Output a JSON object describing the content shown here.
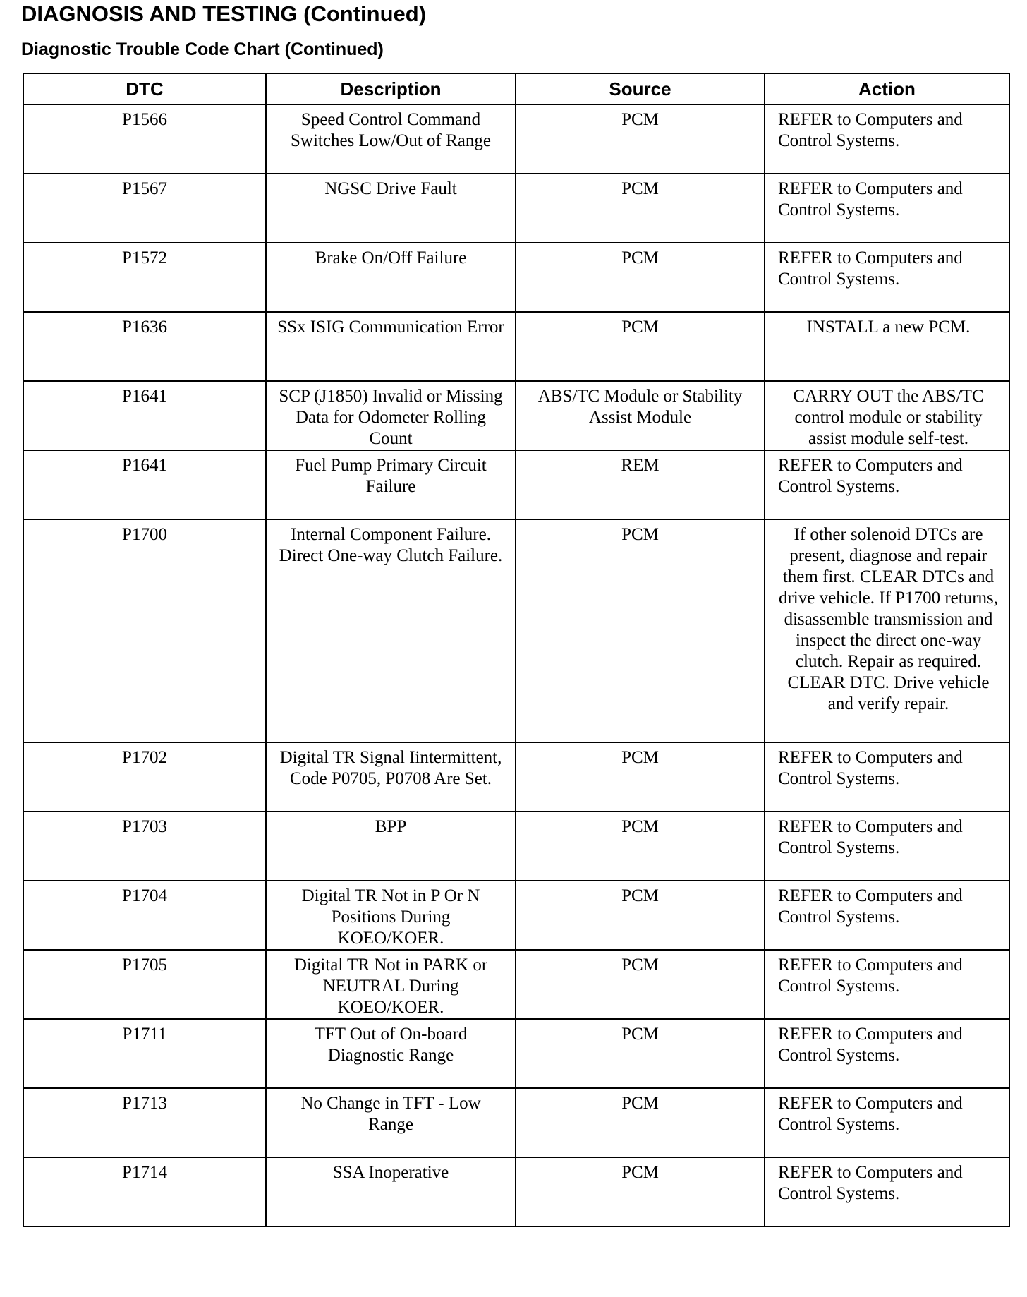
{
  "header": {
    "title": "DIAGNOSIS AND TESTING (Continued)",
    "subtitle": "Diagnostic Trouble Code Chart (Continued)"
  },
  "table": {
    "columns": [
      "DTC",
      "Description",
      "Source",
      "Action"
    ],
    "rows": [
      [
        "P1566",
        "Speed Control Command Switches Low/Out of Range",
        "PCM",
        "REFER to Computers and Control Systems."
      ],
      [
        "P1567",
        "NGSC Drive Fault",
        "PCM",
        "REFER to Computers and Control Systems."
      ],
      [
        "P1572",
        "Brake On/Off Failure",
        "PCM",
        "REFER to Computers and Control Systems."
      ],
      [
        "P1636",
        "SSx ISIG Communication Error",
        "PCM",
        "INSTALL a new PCM."
      ],
      [
        "P1641",
        "SCP (J1850) Invalid or Missing Data for Odometer Rolling Count",
        "ABS/TC Module or Stability Assist Module",
        "CARRY OUT the ABS/TC control module or stability assist module self-test."
      ],
      [
        "P1641",
        "Fuel Pump Primary Circuit Failure",
        "REM",
        "REFER to Computers and Control Systems."
      ],
      [
        "P1700",
        "Internal Component Failure. Direct One-way Clutch Failure.",
        "PCM",
        "If other solenoid DTCs are present, diagnose and repair them first. CLEAR DTCs and drive vehicle. If P1700 returns, disassemble transmission and inspect the direct one-way clutch. Repair as required. CLEAR DTC. Drive vehicle and verify repair."
      ],
      [
        "P1702",
        "Digital TR Signal Iintermittent, Code P0705, P0708 Are Set.",
        "PCM",
        "REFER to Computers and Control Systems."
      ],
      [
        "P1703",
        "BPP",
        "PCM",
        "REFER to Computers and Control Systems."
      ],
      [
        "P1704",
        "Digital TR Not in P Or N Positions During KOEO/KOER.",
        "PCM",
        "REFER to Computers and Control Systems."
      ],
      [
        "P1705",
        "Digital TR Not in PARK or NEUTRAL During KOEO/KOER.",
        "PCM",
        "REFER to Computers and Control Systems."
      ],
      [
        "P1711",
        "TFT Out of On-board Diagnostic Range",
        "PCM",
        "REFER to Computers and Control Systems."
      ],
      [
        "P1713",
        "No Change in TFT - Low Range",
        "PCM",
        "REFER to Computers and Control Systems."
      ],
      [
        "P1714",
        "SSA Inoperative",
        "PCM",
        "REFER to Computers and Control Systems."
      ]
    ]
  }
}
